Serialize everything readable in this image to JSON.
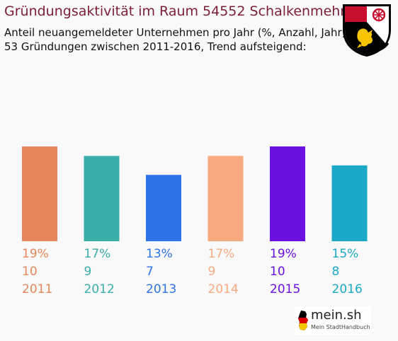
{
  "header": {
    "title": "Gründungsaktivität im Raum 54552 Schalkenmehren",
    "subtitle_line1": "Anteil neuangemeldeter Unternehmen pro Jahr (%, Anzahl, Jahr)",
    "subtitle_line2": "53 Gründungen zwischen 2011-2016, Trend aufsteigend:"
  },
  "crest": {
    "icon": "coat-of-arms-rheinland-pfalz-icon"
  },
  "logo": {
    "main": "mein.sh",
    "sub": "Mein StadtHandbuch"
  },
  "chart_data": {
    "type": "bar",
    "categories": [
      "2011",
      "2012",
      "2013",
      "2014",
      "2015",
      "2016"
    ],
    "values": [
      10,
      9,
      7,
      9,
      10,
      8
    ],
    "percent_labels": [
      "19%",
      "17%",
      "13%",
      "17%",
      "19%",
      "15%"
    ],
    "count_labels": [
      "10",
      "9",
      "7",
      "9",
      "10",
      "8"
    ],
    "colors": [
      "#e5875a",
      "#3aada9",
      "#2e73e8",
      "#f7a97f",
      "#6a10df",
      "#1ba9c7"
    ],
    "ylim": [
      0,
      10
    ],
    "grid": false,
    "legend": "none"
  }
}
